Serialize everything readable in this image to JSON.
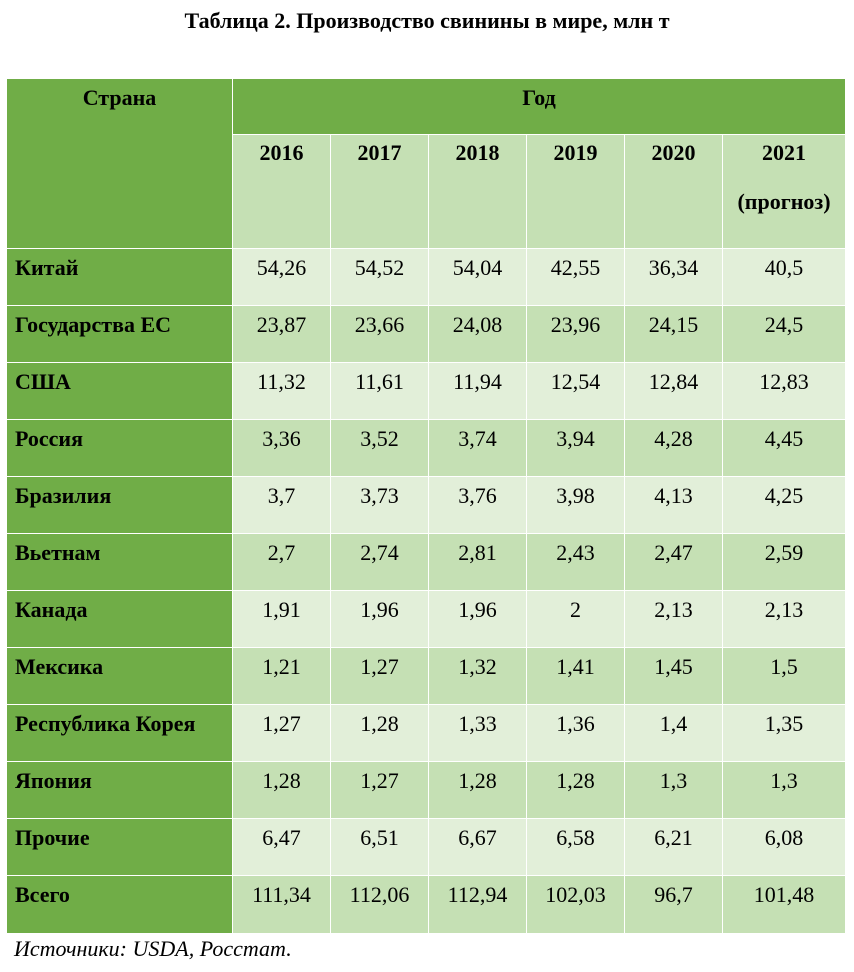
{
  "title": "Таблица 2. Производство свинины в мире, млн т",
  "header": {
    "country": "Страна",
    "year_group": "Год",
    "years": [
      "2016",
      "2017",
      "2018",
      "2019",
      "2020",
      "2021"
    ],
    "last_year_note": "(прогноз)"
  },
  "rows": [
    {
      "country": "Китай",
      "values": [
        "54,26",
        "54,52",
        "54,04",
        "42,55",
        "36,34",
        "40,5"
      ]
    },
    {
      "country": "Государства ЕС",
      "values": [
        "23,87",
        "23,66",
        "24,08",
        "23,96",
        "24,15",
        "24,5"
      ]
    },
    {
      "country": "США",
      "values": [
        "11,32",
        "11,61",
        "11,94",
        "12,54",
        "12,84",
        "12,83"
      ]
    },
    {
      "country": "Россия",
      "values": [
        "3,36",
        "3,52",
        "3,74",
        "3,94",
        "4,28",
        "4,45"
      ]
    },
    {
      "country": "Бразилия",
      "values": [
        "3,7",
        "3,73",
        "3,76",
        "3,98",
        "4,13",
        "4,25"
      ]
    },
    {
      "country": "Вьетнам",
      "values": [
        "2,7",
        "2,74",
        "2,81",
        "2,43",
        "2,47",
        "2,59"
      ]
    },
    {
      "country": "Канада",
      "values": [
        "1,91",
        "1,96",
        "1,96",
        "2",
        "2,13",
        "2,13"
      ]
    },
    {
      "country": "Мексика",
      "values": [
        "1,21",
        "1,27",
        "1,32",
        "1,41",
        "1,45",
        "1,5"
      ]
    },
    {
      "country": "Республика Корея",
      "values": [
        "1,27",
        "1,28",
        "1,33",
        "1,36",
        "1,4",
        "1,35"
      ]
    },
    {
      "country": "Япония",
      "values": [
        "1,28",
        "1,27",
        "1,28",
        "1,28",
        "1,3",
        "1,3"
      ]
    },
    {
      "country": "Прочие",
      "values": [
        "6,47",
        "6,51",
        "6,67",
        "6,58",
        "6,21",
        "6,08"
      ]
    },
    {
      "country": "Всего",
      "values": [
        "111,34",
        "112,06",
        "112,94",
        "102,03",
        "96,7",
        "101,48"
      ]
    }
  ],
  "source": {
    "label": "Источники",
    "text": ": USDA, Росстат."
  },
  "colors": {
    "header_green": "#70ad47",
    "light_green": "#e2efd9",
    "mid_green": "#c5e0b4"
  }
}
